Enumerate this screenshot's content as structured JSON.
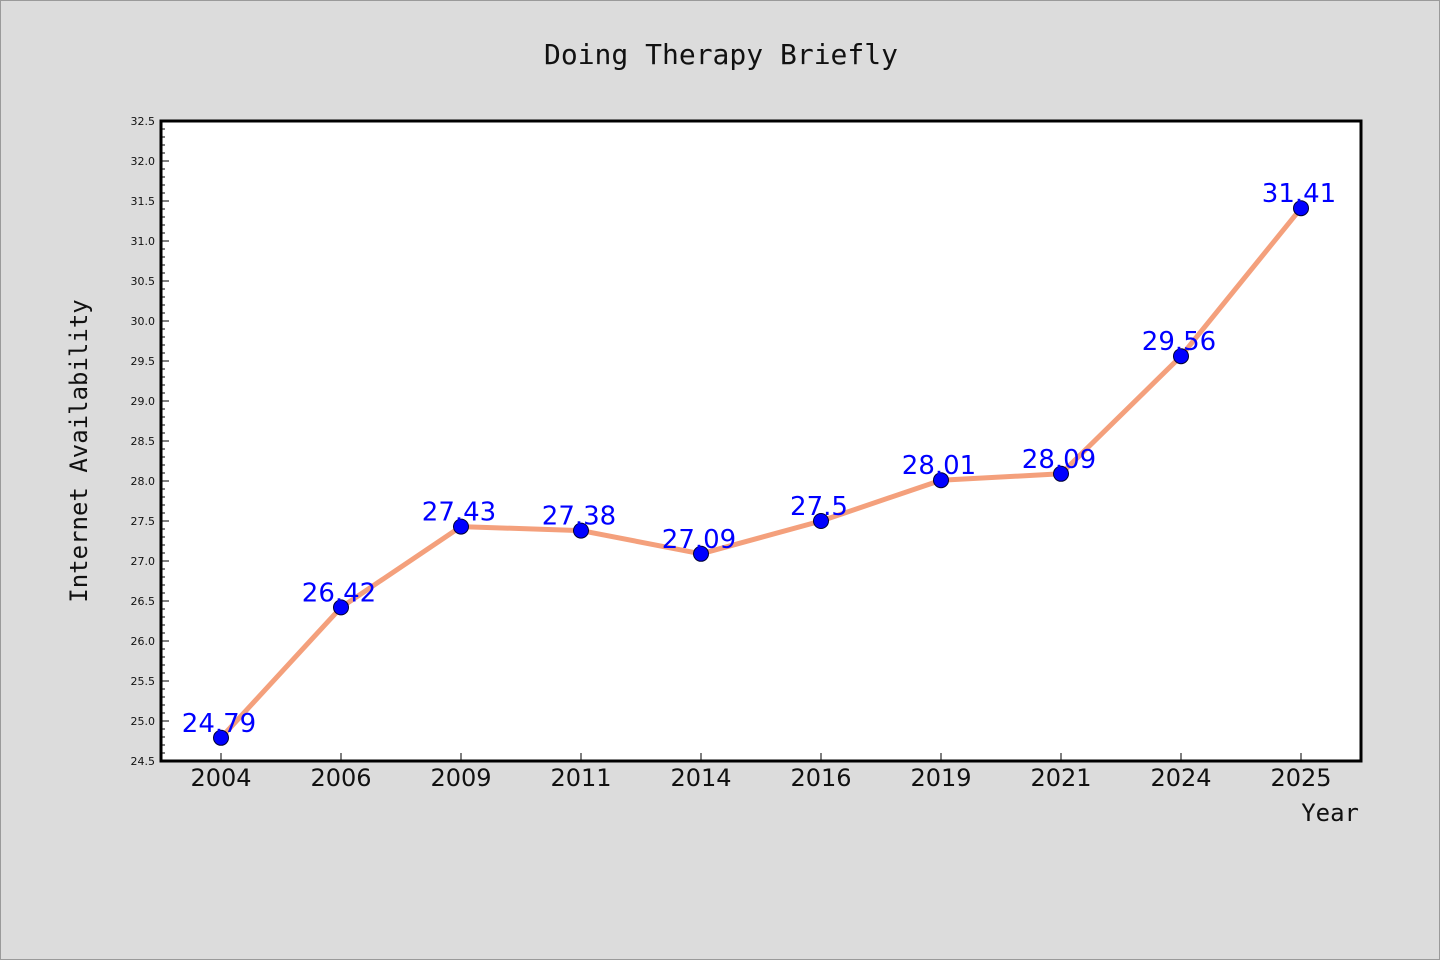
{
  "chart_data": {
    "type": "line",
    "title": "Doing Therapy Briefly",
    "xlabel": "Year",
    "ylabel": "Internet Availability",
    "categories": [
      "2004",
      "2006",
      "2009",
      "2011",
      "2014",
      "2016",
      "2019",
      "2021",
      "2024",
      "2025"
    ],
    "values": [
      24.79,
      26.42,
      27.43,
      27.38,
      27.09,
      27.5,
      28.01,
      28.09,
      29.56,
      31.41
    ],
    "data_labels": [
      "24.79",
      "26.42",
      "27.43",
      "27.38",
      "27.09",
      "27.5",
      "28.01",
      "28.09",
      "29.56",
      "31.41"
    ],
    "ylim": [
      24.5,
      32.5
    ],
    "yticks": [
      "24.5",
      "25.0",
      "25.5",
      "26.0",
      "26.5",
      "27.0",
      "27.5",
      "28.0",
      "28.5",
      "29.0",
      "29.5",
      "30.0",
      "30.5",
      "31.0",
      "31.5",
      "32.0",
      "32.5"
    ],
    "grid": false,
    "legend": "none",
    "colors": {
      "line": "#f4a07c",
      "marker": "#0000ff",
      "data_label": "#0000ff",
      "plot_background": "#ffffff",
      "figure_background": "#dcdcdc"
    }
  }
}
